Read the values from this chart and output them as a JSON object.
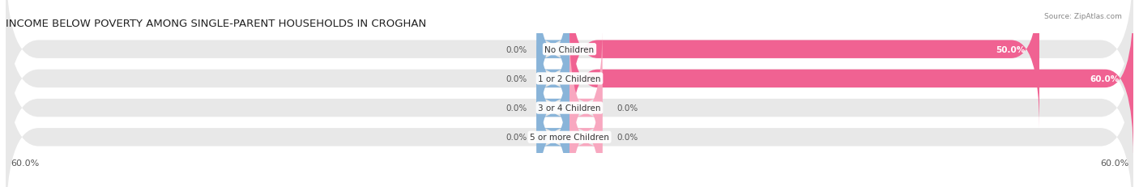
{
  "title": "INCOME BELOW POVERTY AMONG SINGLE-PARENT HOUSEHOLDS IN CROGHAN",
  "source": "Source: ZipAtlas.com",
  "categories": [
    "No Children",
    "1 or 2 Children",
    "3 or 4 Children",
    "5 or more Children"
  ],
  "single_father": [
    0.0,
    0.0,
    0.0,
    0.0
  ],
  "single_mother": [
    50.0,
    60.0,
    0.0,
    0.0
  ],
  "xlim": [
    -60,
    60
  ],
  "father_color": "#89b4d9",
  "mother_color": "#f06292",
  "mother_color_light": "#f8a8c0",
  "bg_bar_color": "#e8e8e8",
  "title_fontsize": 9.5,
  "label_fontsize": 7.5,
  "tick_fontsize": 8,
  "legend_fontsize": 8,
  "text_color": "#555555",
  "title_color": "#222222",
  "cat_label_fontsize": 7.5
}
